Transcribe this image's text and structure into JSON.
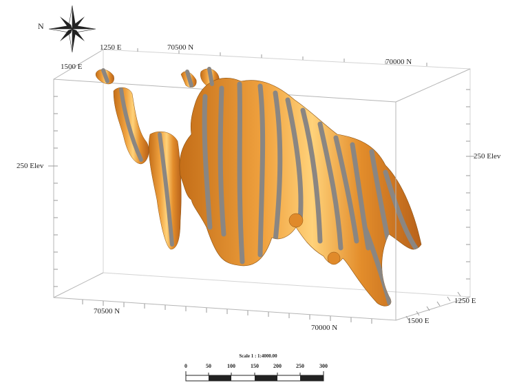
{
  "compass": {
    "north_label": "N",
    "icon": "compass-rose-icon"
  },
  "box_labels": {
    "top_back_left_east": "1250 E",
    "top_front_left_east": "1500 E",
    "top_left_north": "70500 N",
    "top_right_north": "70000 N",
    "left_elev": "250 Elev",
    "right_elev": "250 Elev",
    "bottom_left_north": "70500 N",
    "bottom_right_north": "70000 N",
    "bottom_back_right_east": "1250 E",
    "bottom_front_right_east": "1500 E"
  },
  "scale_bar": {
    "title": "Scale 1 : 1:4000.00",
    "ticks": [
      "0",
      "50",
      "100",
      "150",
      "200",
      "250",
      "300"
    ]
  },
  "colors": {
    "body_orange": "#e08a2a",
    "body_light": "#f5b95a",
    "stripe_grey": "#8a8682",
    "box_line": "#b5b5b5"
  }
}
